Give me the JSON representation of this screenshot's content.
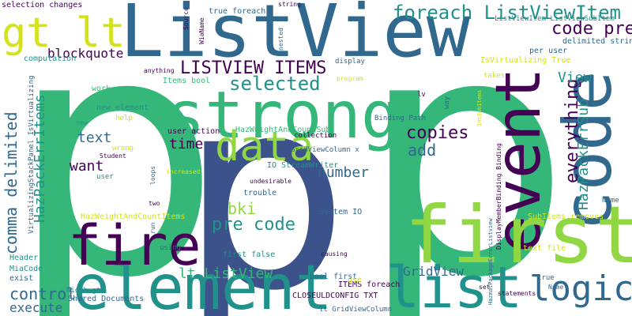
{
  "palette": {
    "purple": "#440154",
    "indigo": "#3b528b",
    "blue": "#31688e",
    "teal": "#21918c",
    "green": "#35b779",
    "lime": "#90d743",
    "yellow": "#d2e21b"
  },
  "words": [
    {
      "text": "p",
      "color": "green"
    },
    {
      "text": "p",
      "color": "green"
    },
    {
      "text": "p",
      "color": "indigo"
    },
    {
      "text": "ListView",
      "color": "blue"
    },
    {
      "text": "strong",
      "color": "green"
    },
    {
      "text": "code",
      "color": "blue"
    },
    {
      "text": "event",
      "color": "purple"
    },
    {
      "text": "first",
      "color": "lime"
    },
    {
      "text": "element",
      "color": "teal"
    },
    {
      "text": "list",
      "color": "teal"
    },
    {
      "text": "fire",
      "color": "purple"
    },
    {
      "text": "data",
      "color": "lime"
    },
    {
      "text": "gt lt",
      "color": "yellow"
    },
    {
      "text": "foreach ListViewItem",
      "color": "teal"
    },
    {
      "text": "logic",
      "color": "blue"
    },
    {
      "text": "LISTVIEW ITEMS",
      "color": "purple"
    },
    {
      "text": "selected",
      "color": "teal"
    },
    {
      "text": "blockquote",
      "color": "purple"
    },
    {
      "text": "copies",
      "color": "purple"
    },
    {
      "text": "code pre",
      "color": "purple"
    },
    {
      "text": "everything",
      "color": "purple"
    },
    {
      "text": "HazPackErrSub",
      "color": "teal"
    },
    {
      "text": "HazPackErrItems",
      "color": "teal"
    },
    {
      "text": "comma delimited",
      "color": "blue"
    },
    {
      "text": "View",
      "color": "teal"
    },
    {
      "text": "text",
      "color": "blue"
    },
    {
      "text": "add",
      "color": "blue"
    },
    {
      "text": "time",
      "color": "purple"
    },
    {
      "text": "want",
      "color": "purple"
    },
    {
      "text": "number",
      "color": "blue"
    },
    {
      "text": "bki",
      "color": "lime"
    },
    {
      "text": "pre code",
      "color": "teal"
    },
    {
      "text": "lt ListView",
      "color": "green"
    },
    {
      "text": "GridView",
      "color": "blue"
    },
    {
      "text": "control",
      "color": "blue"
    },
    {
      "text": "execute",
      "color": "blue"
    },
    {
      "text": "selection changes",
      "color": "purple"
    },
    {
      "text": "per user",
      "color": "blue"
    },
    {
      "text": "delimited string",
      "color": "blue"
    },
    {
      "text": "IsVirtualizing True",
      "color": "yellow"
    },
    {
      "text": "ListViewItem ListViewSubItem",
      "color": "teal"
    },
    {
      "text": "HazWeightAndCountSub",
      "color": "green"
    },
    {
      "text": "HazWeightAndCountItems",
      "color": "yellow"
    },
    {
      "text": "VirtualizingStackPanel IsVirtualizing",
      "color": "blue"
    },
    {
      "text": "computation",
      "color": "teal"
    },
    {
      "text": "Items bool",
      "color": "green"
    },
    {
      "text": "user action",
      "color": "purple"
    },
    {
      "text": "IO StreamWriter",
      "color": "teal"
    },
    {
      "text": "System IO",
      "color": "blue"
    },
    {
      "text": "trouble",
      "color": "blue"
    },
    {
      "text": "first false",
      "color": "teal"
    },
    {
      "text": "bool first",
      "color": "blue"
    },
    {
      "text": "ITEMS foreach",
      "color": "purple"
    },
    {
      "text": "CLOSEULDCONFIG TXT",
      "color": "purple"
    },
    {
      "text": "lt GridViewColumn",
      "color": "blue"
    },
    {
      "text": "SubItems removes",
      "color": "yellow"
    },
    {
      "text": "text file",
      "color": "yellow"
    },
    {
      "text": "GridViewColumn x",
      "color": "blue"
    },
    {
      "text": "Binding Path",
      "color": "blue"
    },
    {
      "text": "collection",
      "color": "purple"
    },
    {
      "text": "undesirable",
      "color": "purple"
    },
    {
      "text": "Shared Documents",
      "color": "blue"
    },
    {
      "text": "Width gt",
      "color": "teal"
    },
    {
      "text": "MiaCode",
      "color": "teal"
    },
    {
      "text": "Header",
      "color": "teal"
    },
    {
      "text": "exist",
      "color": "blue"
    },
    {
      "text": "Name",
      "color": "blue"
    },
    {
      "text": "Student",
      "color": "purple"
    },
    {
      "text": "true foreach",
      "color": "blue"
    },
    {
      "text": "new element",
      "color": "teal"
    },
    {
      "text": "work",
      "color": "green"
    },
    {
      "text": "wrong",
      "color": "yellow"
    },
    {
      "text": "help",
      "color": "yellow"
    },
    {
      "text": "user",
      "color": "teal"
    },
    {
      "text": "new",
      "color": "teal"
    },
    {
      "text": "anything",
      "color": "purple"
    },
    {
      "text": "two",
      "color": "purple"
    },
    {
      "text": "loops",
      "color": "blue"
    },
    {
      "text": "run",
      "color": "blue"
    },
    {
      "text": "using",
      "color": "blue"
    },
    {
      "text": "causing",
      "color": "purple"
    },
    {
      "text": "use",
      "color": "yellow"
    },
    {
      "text": "display",
      "color": "blue"
    },
    {
      "text": "program",
      "color": "yellow"
    },
    {
      "text": "takes",
      "color": "yellow"
    },
    {
      "text": "lv",
      "color": "purple"
    },
    {
      "text": "way",
      "color": "blue"
    },
    {
      "text": "statements",
      "color": "purple"
    },
    {
      "text": "set",
      "color": "purple"
    },
    {
      "text": "true",
      "color": "blue"
    },
    {
      "text": "Name",
      "color": "blue"
    },
    {
      "text": "string",
      "color": "purple"
    },
    {
      "text": "Source",
      "color": "purple"
    },
    {
      "text": "nested",
      "color": "blue"
    },
    {
      "text": "WiaName",
      "color": "purple"
    },
    {
      "text": "DisplayMemberBinding Binding",
      "color": "purple"
    },
    {
      "text": "HazmatPackageErrorListview",
      "color": "blue"
    },
    {
      "text": "IntSubItems",
      "color": "yellow"
    },
    {
      "text": "increased",
      "color": "yellow"
    }
  ]
}
